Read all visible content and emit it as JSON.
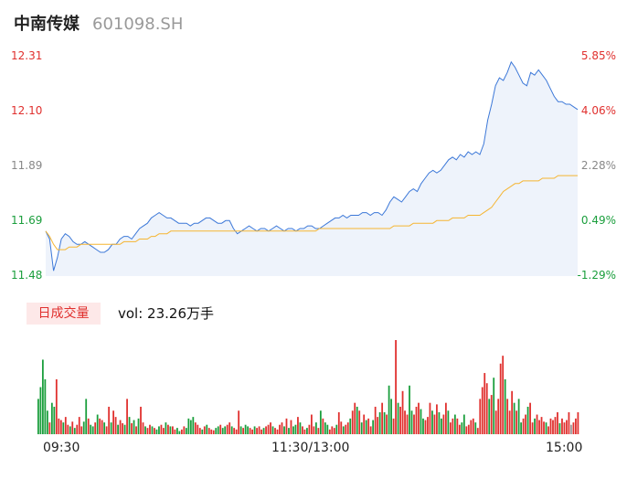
{
  "header": {
    "name": "中南传媒",
    "code": "601098.SH"
  },
  "colors": {
    "price_line": "#3c78d8",
    "avg_line": "#f5b532",
    "area_fill": "#eef3fb",
    "up": "#e0302e",
    "down": "#1a9e3c",
    "flat": "#999999"
  },
  "volume": {
    "badge": "日成交量",
    "text": "vol: 23.26万手"
  },
  "chart_data": [
    {
      "type": "line",
      "title": "",
      "x_ticks": [
        "09:30",
        "11:30/13:00",
        "15:00"
      ],
      "y_ticks_left": [
        "12.31",
        "12.10",
        "11.89",
        "11.69",
        "11.48"
      ],
      "y_ticks_right": [
        "5.85%",
        "4.06%",
        "2.28%",
        "0.49%",
        "-1.29%"
      ],
      "ylim": [
        11.48,
        12.31
      ],
      "prev_close": 11.63,
      "series": [
        {
          "key": "price",
          "values": [
            11.65,
            11.62,
            11.5,
            11.55,
            11.62,
            11.64,
            11.63,
            11.61,
            11.6,
            11.6,
            11.61,
            11.6,
            11.59,
            11.58,
            11.57,
            11.57,
            11.58,
            11.6,
            11.6,
            11.62,
            11.63,
            11.63,
            11.62,
            11.64,
            11.66,
            11.67,
            11.68,
            11.7,
            11.71,
            11.72,
            11.71,
            11.7,
            11.7,
            11.69,
            11.68,
            11.68,
            11.68,
            11.67,
            11.68,
            11.68,
            11.69,
            11.7,
            11.7,
            11.69,
            11.68,
            11.68,
            11.69,
            11.69,
            11.66,
            11.64,
            11.65,
            11.66,
            11.67,
            11.66,
            11.65,
            11.66,
            11.66,
            11.65,
            11.66,
            11.67,
            11.66,
            11.65,
            11.66,
            11.66,
            11.65,
            11.66,
            11.66,
            11.67,
            11.67,
            11.66,
            11.66,
            11.67,
            11.68,
            11.69,
            11.7,
            11.7,
            11.71,
            11.7,
            11.71,
            11.71,
            11.71,
            11.72,
            11.72,
            11.71,
            11.72,
            11.72,
            11.71,
            11.73,
            11.76,
            11.78,
            11.77,
            11.76,
            11.78,
            11.8,
            11.81,
            11.8,
            11.83,
            11.85,
            11.87,
            11.88,
            11.87,
            11.88,
            11.9,
            11.92,
            11.93,
            11.92,
            11.94,
            11.93,
            11.95,
            11.94,
            11.95,
            11.94,
            11.98,
            12.07,
            12.13,
            12.2,
            12.23,
            12.22,
            12.25,
            12.29,
            12.27,
            12.24,
            12.21,
            12.2,
            12.25,
            12.24,
            12.26,
            12.24,
            12.22,
            12.19,
            12.16,
            12.14,
            12.14,
            12.13,
            12.13,
            12.12,
            12.11
          ]
        },
        {
          "key": "avg",
          "values": [
            11.65,
            11.63,
            11.6,
            11.58,
            11.58,
            11.58,
            11.59,
            11.59,
            11.59,
            11.6,
            11.6,
            11.6,
            11.6,
            11.6,
            11.6,
            11.6,
            11.6,
            11.6,
            11.6,
            11.6,
            11.61,
            11.61,
            11.61,
            11.61,
            11.62,
            11.62,
            11.62,
            11.63,
            11.63,
            11.64,
            11.64,
            11.64,
            11.65,
            11.65,
            11.65,
            11.65,
            11.65,
            11.65,
            11.65,
            11.65,
            11.65,
            11.65,
            11.65,
            11.65,
            11.65,
            11.65,
            11.65,
            11.65,
            11.65,
            11.65,
            11.65,
            11.65,
            11.65,
            11.65,
            11.65,
            11.65,
            11.65,
            11.65,
            11.65,
            11.65,
            11.65,
            11.65,
            11.65,
            11.65,
            11.65,
            11.65,
            11.65,
            11.65,
            11.65,
            11.65,
            11.66,
            11.66,
            11.66,
            11.66,
            11.66,
            11.66,
            11.66,
            11.66,
            11.66,
            11.66,
            11.66,
            11.66,
            11.66,
            11.66,
            11.66,
            11.66,
            11.66,
            11.66,
            11.66,
            11.67,
            11.67,
            11.67,
            11.67,
            11.67,
            11.68,
            11.68,
            11.68,
            11.68,
            11.68,
            11.68,
            11.69,
            11.69,
            11.69,
            11.69,
            11.7,
            11.7,
            11.7,
            11.7,
            11.71,
            11.71,
            11.71,
            11.71,
            11.72,
            11.73,
            11.74,
            11.76,
            11.78,
            11.8,
            11.81,
            11.82,
            11.83,
            11.83,
            11.84,
            11.84,
            11.84,
            11.84,
            11.84,
            11.85,
            11.85,
            11.85,
            11.85,
            11.86,
            11.86,
            11.86,
            11.86,
            11.86,
            11.86
          ]
        }
      ]
    },
    {
      "type": "bar",
      "title": "",
      "values": [
        45,
        60,
        95,
        70,
        30,
        15,
        40,
        35,
        70,
        20,
        18,
        15,
        22,
        12,
        10,
        16,
        8,
        12,
        22,
        10,
        16,
        45,
        20,
        12,
        10,
        15,
        25,
        20,
        18,
        15,
        10,
        35,
        15,
        30,
        22,
        12,
        18,
        14,
        12,
        45,
        22,
        14,
        18,
        10,
        20,
        35,
        15,
        10,
        8,
        12,
        10,
        8,
        6,
        10,
        12,
        8,
        15,
        12,
        10,
        10,
        6,
        8,
        4,
        6,
        10,
        8,
        20,
        18,
        22,
        15,
        12,
        8,
        6,
        10,
        12,
        8,
        6,
        5,
        8,
        10,
        12,
        8,
        10,
        12,
        15,
        10,
        8,
        6,
        30,
        10,
        8,
        12,
        10,
        8,
        6,
        10,
        8,
        10,
        6,
        8,
        10,
        12,
        15,
        10,
        8,
        6,
        12,
        15,
        10,
        20,
        8,
        18,
        10,
        12,
        22,
        15,
        10,
        6,
        8,
        12,
        25,
        10,
        15,
        8,
        30,
        20,
        15,
        12,
        6,
        10,
        8,
        12,
        28,
        16,
        10,
        12,
        15,
        20,
        30,
        40,
        35,
        30,
        15,
        25,
        18,
        20,
        10,
        18,
        35,
        22,
        28,
        40,
        28,
        25,
        62,
        45,
        20,
        120,
        40,
        35,
        55,
        30,
        25,
        62,
        30,
        25,
        35,
        40,
        32,
        20,
        18,
        22,
        40,
        30,
        25,
        38,
        28,
        20,
        25,
        40,
        30,
        15,
        20,
        25,
        20,
        12,
        15,
        25,
        10,
        12,
        18,
        20,
        15,
        8,
        45,
        60,
        78,
        65,
        45,
        50,
        72,
        30,
        45,
        90,
        100,
        70,
        45,
        30,
        55,
        40,
        30,
        45,
        15,
        20,
        25,
        35,
        40,
        15,
        20,
        25,
        18,
        22,
        16,
        15,
        10,
        20,
        18,
        22,
        28,
        14,
        20,
        15,
        18,
        28,
        12,
        15,
        20,
        28
      ],
      "colors": [
        "down",
        "down",
        "down",
        "down",
        "down",
        "up",
        "down",
        "down",
        "up",
        "up",
        "up",
        "down",
        "up",
        "up",
        "down",
        "up",
        "down",
        "up",
        "up",
        "up",
        "down",
        "down",
        "up",
        "down",
        "down",
        "up",
        "down",
        "up",
        "up",
        "down",
        "up",
        "up",
        "down",
        "up",
        "up",
        "down",
        "up",
        "up",
        "down",
        "up",
        "down",
        "up",
        "down",
        "up",
        "down",
        "up",
        "up",
        "down",
        "up",
        "up",
        "down",
        "up",
        "down",
        "down",
        "up",
        "up",
        "down",
        "up",
        "down",
        "up",
        "up",
        "down",
        "down",
        "up",
        "up",
        "down",
        "down",
        "down",
        "down",
        "up",
        "up",
        "up",
        "down",
        "up",
        "down",
        "up",
        "up",
        "up",
        "down",
        "down",
        "up",
        "down",
        "down",
        "up",
        "up",
        "down",
        "up",
        "up",
        "up",
        "down",
        "up",
        "down",
        "down",
        "up",
        "up",
        "down",
        "up",
        "up",
        "up",
        "down",
        "up",
        "up",
        "up",
        "down",
        "up",
        "up",
        "up",
        "up",
        "down",
        "up",
        "down",
        "up",
        "down",
        "down",
        "up",
        "down",
        "up",
        "up",
        "down",
        "up",
        "up",
        "up",
        "down",
        "up",
        "down",
        "up",
        "down",
        "down",
        "up",
        "up",
        "up",
        "down",
        "up",
        "up",
        "down",
        "up",
        "up",
        "down",
        "up",
        "up",
        "down",
        "up",
        "down",
        "up",
        "down",
        "up",
        "up",
        "down",
        "up",
        "up",
        "down",
        "up",
        "down",
        "up",
        "down",
        "down",
        "up",
        "up",
        "down",
        "up",
        "up",
        "up",
        "up",
        "down",
        "down",
        "up",
        "up",
        "up",
        "down",
        "down",
        "up",
        "up",
        "up",
        "down",
        "up",
        "up",
        "down",
        "down",
        "up",
        "up",
        "down",
        "up",
        "up",
        "down",
        "up",
        "up",
        "down",
        "down",
        "up",
        "up",
        "up",
        "up",
        "down",
        "up",
        "up",
        "up",
        "up",
        "up",
        "down",
        "up",
        "down",
        "up",
        "up",
        "up",
        "up",
        "down",
        "up",
        "up",
        "up",
        "down",
        "up",
        "down",
        "down",
        "up",
        "up",
        "down",
        "up",
        "up",
        "down",
        "up",
        "up",
        "up",
        "up",
        "down",
        "up",
        "up",
        "up",
        "up",
        "up",
        "down",
        "up",
        "up",
        "up",
        "up",
        "flat"
      ]
    }
  ]
}
